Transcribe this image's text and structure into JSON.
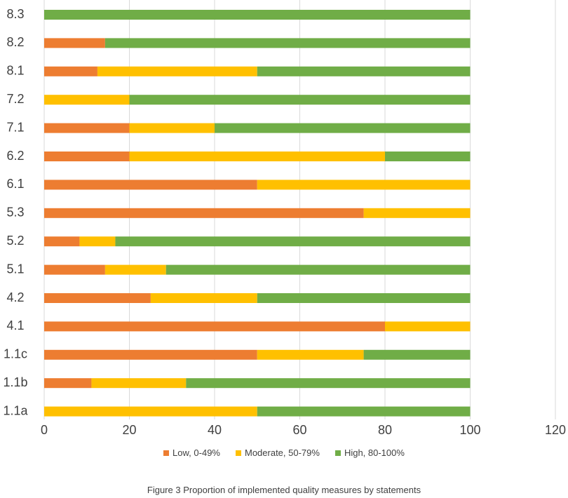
{
  "chart_data": {
    "type": "bar",
    "orientation": "horizontal",
    "stacked": true,
    "title": "",
    "xlabel": "",
    "ylabel": "",
    "xlim": [
      0,
      120
    ],
    "xticks": [
      0,
      20,
      40,
      60,
      80,
      100,
      120
    ],
    "grid": true,
    "legend_position": "bottom",
    "categories": [
      "8.3",
      "8.2",
      "8.1",
      "7.2",
      "7.1",
      "6.2",
      "6.1",
      "5.3",
      "5.2",
      "5.1",
      "4.2",
      "4.1",
      "1.1c",
      "1.1b",
      "1.1a"
    ],
    "series": [
      {
        "name": "Low, 0-49%",
        "color": "#ED7D31",
        "values": [
          0,
          14.3,
          12.5,
          0,
          20,
          20,
          50,
          75,
          8.3,
          14.3,
          25,
          80,
          50,
          11.1,
          0
        ]
      },
      {
        "name": "Moderate, 50-79%",
        "color": "#FFC000",
        "values": [
          0,
          0,
          37.5,
          20,
          20,
          60,
          50,
          25,
          8.4,
          14.3,
          25,
          20,
          25,
          22.2,
          50
        ]
      },
      {
        "name": "High, 80-100%",
        "color": "#70AD47",
        "values": [
          100,
          85.7,
          50,
          80,
          60,
          20,
          0,
          0,
          83.3,
          71.4,
          50,
          0,
          25,
          66.7,
          50
        ]
      }
    ]
  },
  "caption": "Figure 3 Proportion of implemented quality measures  by statements"
}
